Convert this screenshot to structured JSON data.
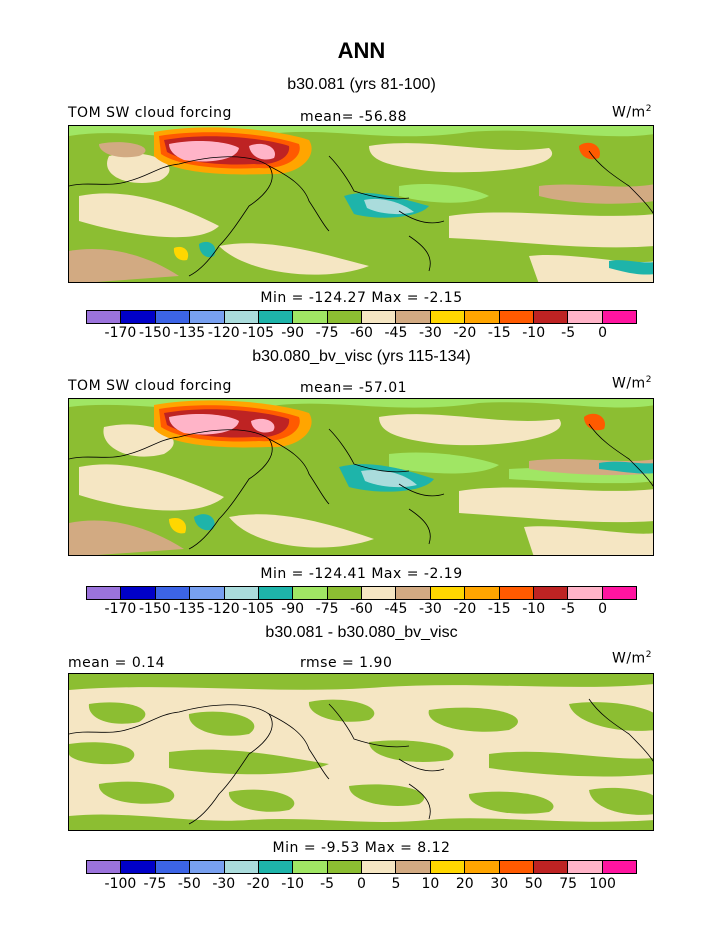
{
  "title": "ANN",
  "chart_data": [
    {
      "type": "heatmap",
      "title": "b30.081 (yrs 81-100)",
      "left_label": "TOM SW cloud forcing",
      "center_label": "mean= -56.88",
      "units": "W/m",
      "units_sup": "2",
      "minmax_text": "Min = -124.27 Max =  -2.15",
      "min": -124.27,
      "max": -2.15,
      "mean": -56.88,
      "colorbar_levels": [
        "-170",
        "-150",
        "-135",
        "-120",
        "-105",
        "-90",
        "-75",
        "-60",
        "-45",
        "-30",
        "-20",
        "-15",
        "-10",
        "-5",
        "0"
      ],
      "colorbar_colors": [
        "#9b73dc",
        "#0000c8",
        "#3c64e6",
        "#78a0f0",
        "#aadcdc",
        "#1eb4aa",
        "#a0e664",
        "#8cbe32",
        "#f5e6c3",
        "#d2aa82",
        "#ffd700",
        "#ffa500",
        "#ff5a00",
        "#be2323",
        "#ffb4c8",
        "#ff14a0"
      ]
    },
    {
      "type": "heatmap",
      "title": "b30.080_bv_visc (yrs 115-134)",
      "left_label": "TOM SW cloud forcing",
      "center_label": "mean= -57.01",
      "units": "W/m",
      "units_sup": "2",
      "minmax_text": "Min = -124.41 Max =  -2.19",
      "min": -124.41,
      "max": -2.19,
      "mean": -57.01,
      "colorbar_levels": [
        "-170",
        "-150",
        "-135",
        "-120",
        "-105",
        "-90",
        "-75",
        "-60",
        "-45",
        "-30",
        "-20",
        "-15",
        "-10",
        "-5",
        "0"
      ],
      "colorbar_colors": [
        "#9b73dc",
        "#0000c8",
        "#3c64e6",
        "#78a0f0",
        "#aadcdc",
        "#1eb4aa",
        "#a0e664",
        "#8cbe32",
        "#f5e6c3",
        "#d2aa82",
        "#ffd700",
        "#ffa500",
        "#ff5a00",
        "#be2323",
        "#ffb4c8",
        "#ff14a0"
      ]
    },
    {
      "type": "heatmap",
      "title": "b30.081 - b30.080_bv_visc",
      "left_label": "mean =     0.14",
      "center_label": "rmse =     1.90",
      "units": "W/m",
      "units_sup": "2",
      "minmax_text": "Min =    -9.53 Max =    8.12",
      "min": -9.53,
      "max": 8.12,
      "mean": 0.14,
      "rmse": 1.9,
      "colorbar_levels": [
        "-100",
        "-75",
        "-50",
        "-30",
        "-20",
        "-10",
        "-5",
        "0",
        "5",
        "10",
        "20",
        "30",
        "50",
        "75",
        "100"
      ],
      "colorbar_colors": [
        "#9b73dc",
        "#0000c8",
        "#3c64e6",
        "#78a0f0",
        "#aadcdc",
        "#1eb4aa",
        "#a0e664",
        "#8cbe32",
        "#f5e6c3",
        "#d2aa82",
        "#ffd700",
        "#ffa500",
        "#ff5a00",
        "#be2323",
        "#ffb4c8",
        "#ff14a0"
      ]
    }
  ]
}
